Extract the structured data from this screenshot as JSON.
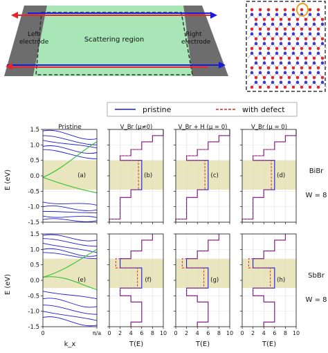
{
  "schematic": {
    "left_label_1": "Left",
    "left_label_2": "electrode",
    "center_label": "Scattering region",
    "right_label_1": "Right",
    "right_label_2": "electrode"
  },
  "legend": {
    "pristine": "pristine",
    "defect": "with defect"
  },
  "rows": [
    {
      "material": "BiBr",
      "width": "W = 8"
    },
    {
      "material": "SbBr",
      "width": "W = 8"
    }
  ],
  "columns": [
    "Pristine",
    "V_Br (μ≠0)",
    "V_Br + H (μ = 0)",
    "V_Br (μ = 0)"
  ],
  "panel_letters": [
    "(a)",
    "(b)",
    "(c)",
    "(d)",
    "(e)",
    "(f)",
    "(g)",
    "(h)"
  ],
  "axes": {
    "ylabel": "E (eV)",
    "xlabel_band": "k_x",
    "xlabel_T": "T(E)",
    "yticks": [
      "1.5",
      "1.0",
      "0.5",
      "0.0",
      "-0.5",
      "-1.0",
      "-1.5"
    ],
    "band_xticks": [
      "0",
      "π/a"
    ],
    "T_xticks": [
      "0",
      "2",
      "4",
      "6",
      "8",
      "10"
    ]
  },
  "colors": {
    "pristine": "#1a1adb",
    "defect": "#e8232a",
    "edge_band": "#2fbf2f",
    "gap_shade": "#e9e6bd",
    "electrode": "#6d6d6d",
    "scattering": "#a8e6b8",
    "atom_a": "#d83030",
    "atom_b": "#3a3acc"
  },
  "chart_data": [
    {
      "type": "line",
      "panel": "(a)",
      "material": "BiBr",
      "title": "Pristine",
      "xlabel": "k_x",
      "ylabel": "E (eV)",
      "ylim": [
        -1.5,
        1.5
      ],
      "shaded_gap": [
        -0.45,
        0.5
      ]
    },
    {
      "type": "line",
      "panel": "(b)",
      "material": "BiBr",
      "title": "V_Br (μ≠0)",
      "xlabel": "T(E)",
      "xlim": [
        0,
        10
      ],
      "ylim": [
        -1.5,
        1.5
      ],
      "shaded_gap": [
        -0.45,
        0.5
      ],
      "series": [
        {
          "name": "pristine",
          "steps": [
            [
              -1.5,
              0
            ],
            [
              -1.4,
              2
            ],
            [
              -0.75,
              2
            ],
            [
              -0.7,
              4
            ],
            [
              -0.5,
              4
            ],
            [
              -0.45,
              6
            ],
            [
              0.5,
              2
            ],
            [
              0.65,
              4
            ],
            [
              0.75,
              4
            ],
            [
              0.85,
              6
            ],
            [
              1.05,
              6
            ],
            [
              1.1,
              8
            ],
            [
              1.2,
              8
            ],
            [
              1.3,
              10
            ]
          ]
        },
        {
          "name": "with defect",
          "steps": [
            [
              -1.5,
              0
            ],
            [
              -1.4,
              2
            ],
            [
              -0.75,
              2
            ],
            [
              -0.7,
              4
            ],
            [
              -0.5,
              4
            ],
            [
              -0.45,
              5.4
            ],
            [
              0.5,
              2
            ],
            [
              0.65,
              4
            ],
            [
              0.75,
              4
            ],
            [
              0.85,
              6
            ],
            [
              1.05,
              6
            ],
            [
              1.1,
              8
            ],
            [
              1.2,
              8
            ],
            [
              1.3,
              10
            ]
          ]
        }
      ]
    },
    {
      "type": "line",
      "panel": "(c)",
      "material": "BiBr",
      "title": "V_Br + H (μ = 0)",
      "xlabel": "T(E)",
      "xlim": [
        0,
        10
      ],
      "ylim": [
        -1.5,
        1.5
      ],
      "shaded_gap": [
        -0.45,
        0.5
      ]
    },
    {
      "type": "line",
      "panel": "(d)",
      "material": "BiBr",
      "title": "V_Br (μ = 0)",
      "xlabel": "T(E)",
      "xlim": [
        0,
        10
      ],
      "ylim": [
        -1.5,
        1.5
      ],
      "shaded_gap": [
        -0.45,
        0.5
      ]
    },
    {
      "type": "line",
      "panel": "(e)",
      "material": "SbBr",
      "xlabel": "k_x",
      "ylabel": "E (eV)",
      "ylim": [
        -1.5,
        1.5
      ],
      "shaded_gap": [
        -0.25,
        0.7
      ]
    },
    {
      "type": "line",
      "panel": "(f)",
      "material": "SbBr",
      "xlabel": "T(E)",
      "xlim": [
        0,
        10
      ],
      "ylim": [
        -1.5,
        1.5
      ],
      "shaded_gap": [
        -0.25,
        0.7
      ],
      "series": [
        {
          "name": "pristine",
          "steps": [
            [
              -1.5,
              4
            ],
            [
              -1.35,
              6
            ],
            [
              -1.0,
              6
            ],
            [
              -0.7,
              4
            ],
            [
              -0.5,
              2
            ],
            [
              -0.25,
              6
            ],
            [
              0.4,
              2
            ],
            [
              0.7,
              4
            ],
            [
              0.95,
              6
            ],
            [
              1.15,
              6
            ],
            [
              1.3,
              8
            ]
          ]
        },
        {
          "name": "with defect",
          "steps": [
            [
              -1.5,
              4
            ],
            [
              -1.35,
              6
            ],
            [
              -1.0,
              6
            ],
            [
              -0.7,
              4
            ],
            [
              -0.5,
              2
            ],
            [
              -0.25,
              5.2
            ],
            [
              0.4,
              1.2
            ],
            [
              0.7,
              4
            ],
            [
              0.95,
              6
            ],
            [
              1.15,
              6
            ],
            [
              1.3,
              8
            ]
          ]
        }
      ]
    },
    {
      "type": "line",
      "panel": "(g)",
      "material": "SbBr",
      "xlabel": "T(E)",
      "xlim": [
        0,
        10
      ],
      "ylim": [
        -1.5,
        1.5
      ],
      "shaded_gap": [
        -0.25,
        0.7
      ]
    },
    {
      "type": "line",
      "panel": "(h)",
      "material": "SbBr",
      "xlabel": "T(E)",
      "xlim": [
        0,
        10
      ],
      "ylim": [
        -1.5,
        1.5
      ],
      "shaded_gap": [
        -0.25,
        0.7
      ]
    }
  ]
}
